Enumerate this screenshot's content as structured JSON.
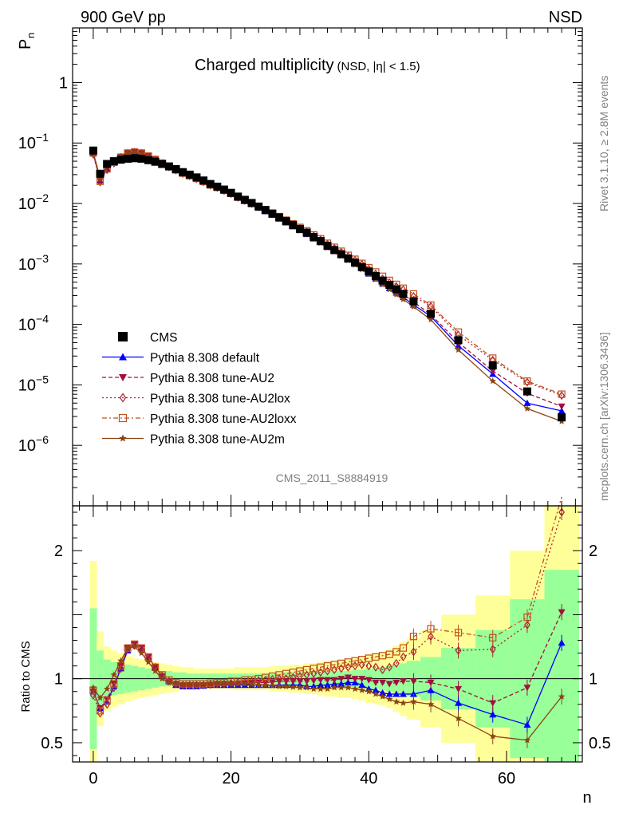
{
  "header": {
    "left": "900 GeV pp",
    "right": "NSD"
  },
  "side_text": {
    "top": "Rivet 3.1.10, ≥ 2.8M events",
    "bottom": "mcplots.cern.ch [arXiv:1306.3436]"
  },
  "analysis_id": "CMS_2011_S8884919",
  "chart_data": [
    {
      "type": "scatter",
      "title": "Charged multiplicity",
      "subtitle": "(NSD, |η| < 1.5)",
      "ylabel": "P",
      "ylabel_sub": "n",
      "yscale": "log",
      "ylim": [
        1e-07,
        8
      ],
      "xlim": [
        -3,
        71
      ],
      "yticks": [
        {
          "v": 1,
          "label": "1"
        },
        {
          "v": 0.1,
          "base": "10",
          "exp": "−1"
        },
        {
          "v": 0.01,
          "base": "10",
          "exp": "−2"
        },
        {
          "v": 0.001,
          "base": "10",
          "exp": "−3"
        },
        {
          "v": 0.0001,
          "base": "10",
          "exp": "−4"
        },
        {
          "v": 1e-05,
          "base": "10",
          "exp": "−5"
        },
        {
          "v": 1e-06,
          "base": "10",
          "exp": "−6"
        }
      ],
      "legend": [
        "CMS",
        "Pythia 8.308 default",
        "Pythia 8.308 tune-AU2",
        "Pythia 8.308 tune-AU2lox",
        "Pythia 8.308 tune-AU2loxx",
        "Pythia 8.308 tune-AU2m"
      ],
      "x": [
        0,
        1,
        2,
        3,
        4,
        5,
        6,
        7,
        8,
        9,
        10,
        11,
        12,
        13,
        14,
        15,
        16,
        17,
        18,
        19,
        20,
        21,
        22,
        23,
        24,
        25,
        26,
        27,
        28,
        29,
        30,
        31,
        32,
        33,
        34,
        35,
        36,
        37,
        38,
        39,
        40,
        41,
        42,
        43,
        44,
        45,
        46.5,
        49,
        53,
        58,
        63,
        68
      ],
      "series": [
        {
          "name": "CMS",
          "color": "#000000",
          "marker": "square",
          "values": [
            0.075,
            0.031,
            0.045,
            0.05,
            0.053,
            0.055,
            0.056,
            0.055,
            0.052,
            0.049,
            0.045,
            0.041,
            0.037,
            0.033,
            0.03,
            0.027,
            0.024,
            0.021,
            0.019,
            0.017,
            0.015,
            0.013,
            0.0115,
            0.0102,
            0.0089,
            0.0078,
            0.0068,
            0.0059,
            0.0051,
            0.0044,
            0.0038,
            0.0033,
            0.0028,
            0.0024,
            0.002,
            0.0017,
            0.00145,
            0.00123,
            0.00105,
            0.00089,
            0.00075,
            0.00063,
            0.00053,
            0.00045,
            0.00038,
            0.00032,
            0.00024,
            0.00015,
            5.5e-05,
            2.1e-05,
            7.8e-06,
            2.9e-06
          ]
        },
        {
          "name": "Pythia 8.308 default",
          "color": "#0000ff",
          "dash": "",
          "marker": "triangle-up",
          "ratio": [
            0.9,
            0.77,
            0.82,
            0.94,
            1.08,
            1.22,
            1.27,
            1.24,
            1.17,
            1.09,
            1.02,
            0.98,
            0.95,
            0.94,
            0.94,
            0.94,
            0.945,
            0.95,
            0.95,
            0.95,
            0.95,
            0.95,
            0.95,
            0.95,
            0.95,
            0.95,
            0.95,
            0.95,
            0.95,
            0.95,
            0.95,
            0.94,
            0.94,
            0.95,
            0.95,
            0.96,
            0.96,
            0.97,
            0.97,
            0.95,
            0.92,
            0.91,
            0.89,
            0.88,
            0.88,
            0.88,
            0.88,
            0.91,
            0.81,
            0.72,
            0.64,
            1.28
          ]
        },
        {
          "name": "Pythia 8.308 tune-AU2",
          "color": "#a01040",
          "dash": "5,3",
          "marker": "triangle-down",
          "ratio": [
            0.9,
            0.77,
            0.84,
            0.96,
            1.1,
            1.24,
            1.27,
            1.24,
            1.17,
            1.09,
            1.02,
            0.98,
            0.96,
            0.95,
            0.95,
            0.95,
            0.95,
            0.955,
            0.96,
            0.96,
            0.96,
            0.96,
            0.965,
            0.97,
            0.97,
            0.97,
            0.975,
            0.98,
            0.98,
            0.98,
            0.98,
            0.98,
            0.985,
            0.99,
            0.99,
            0.99,
            1.0,
            1.01,
            1.0,
            1.0,
            0.99,
            0.97,
            0.97,
            0.96,
            0.97,
            0.98,
            0.98,
            0.97,
            0.92,
            0.81,
            0.93,
            1.52
          ]
        },
        {
          "name": "Pythia 8.308 tune-AU2lox",
          "color": "#b02030",
          "dash": "2,3",
          "marker": "diamond",
          "ratio": [
            0.87,
            0.73,
            0.8,
            0.93,
            1.08,
            1.23,
            1.26,
            1.23,
            1.16,
            1.09,
            1.02,
            0.98,
            0.96,
            0.95,
            0.95,
            0.95,
            0.95,
            0.955,
            0.96,
            0.96,
            0.965,
            0.97,
            0.975,
            0.98,
            0.985,
            0.99,
            0.995,
            1.0,
            1.0,
            1.01,
            1.02,
            1.03,
            1.04,
            1.05,
            1.06,
            1.07,
            1.08,
            1.09,
            1.1,
            1.11,
            1.1,
            1.09,
            1.07,
            1.09,
            1.12,
            1.17,
            1.21,
            1.33,
            1.22,
            1.23,
            1.42,
            2.3
          ]
        },
        {
          "name": "Pythia 8.308 tune-AU2loxx",
          "color": "#c05020",
          "dash": "6,3,2,3",
          "marker": "square-open",
          "ratio": [
            0.91,
            0.75,
            0.83,
            0.96,
            1.1,
            1.24,
            1.27,
            1.24,
            1.17,
            1.09,
            1.03,
            0.99,
            0.97,
            0.96,
            0.96,
            0.96,
            0.96,
            0.965,
            0.97,
            0.97,
            0.98,
            0.98,
            0.99,
            0.99,
            1.0,
            1.01,
            1.02,
            1.03,
            1.04,
            1.05,
            1.06,
            1.07,
            1.08,
            1.09,
            1.1,
            1.11,
            1.12,
            1.13,
            1.14,
            1.15,
            1.16,
            1.17,
            1.18,
            1.19,
            1.21,
            1.24,
            1.33,
            1.39,
            1.36,
            1.32,
            1.48,
            2.42
          ]
        },
        {
          "name": "Pythia 8.308 tune-AU2m",
          "color": "#8b4513",
          "dash": "",
          "marker": "star",
          "ratio": [
            0.93,
            0.85,
            0.92,
            1.03,
            1.14,
            1.24,
            1.25,
            1.2,
            1.13,
            1.06,
            1.0,
            0.97,
            0.96,
            0.96,
            0.96,
            0.96,
            0.96,
            0.965,
            0.96,
            0.96,
            0.96,
            0.96,
            0.96,
            0.955,
            0.95,
            0.95,
            0.945,
            0.94,
            0.94,
            0.935,
            0.93,
            0.93,
            0.92,
            0.92,
            0.92,
            0.93,
            0.93,
            0.93,
            0.92,
            0.91,
            0.9,
            0.88,
            0.86,
            0.84,
            0.82,
            0.81,
            0.82,
            0.8,
            0.69,
            0.55,
            0.52,
            0.86
          ]
        }
      ]
    },
    {
      "type": "scatter",
      "ylabel": "Ratio to CMS",
      "xlabel": "n",
      "ylim": [
        0.35,
        2.35
      ],
      "xlim": [
        -3,
        71
      ],
      "yticks": [
        {
          "v": 0.5,
          "label": "0.5"
        },
        {
          "v": 1,
          "label": "1"
        },
        {
          "v": 2,
          "label": "2"
        }
      ],
      "xticks": [
        {
          "v": 0,
          "label": "0"
        },
        {
          "v": 20,
          "label": "20"
        },
        {
          "v": 40,
          "label": "40"
        },
        {
          "v": 60,
          "label": "60"
        }
      ],
      "band_edges": [
        -0.5,
        0.5,
        1.5,
        2.5,
        3.5,
        4.5,
        5.5,
        6.5,
        7.5,
        8.5,
        9.5,
        10.5,
        11.5,
        12.5,
        13.5,
        14.5,
        15.5,
        16.5,
        17.5,
        18.5,
        19.5,
        20.5,
        21.5,
        22.5,
        23.5,
        24.5,
        25.5,
        26.5,
        27.5,
        28.5,
        29.5,
        30.5,
        31.5,
        32.5,
        33.5,
        34.5,
        35.5,
        36.5,
        37.5,
        38.5,
        39.5,
        40.5,
        41.5,
        42.5,
        43.5,
        44.5,
        45.5,
        47.5,
        50.5,
        55.5,
        60.5,
        65.5,
        70.5
      ],
      "band_green_halfwidth": [
        0.55,
        0.22,
        0.15,
        0.13,
        0.12,
        0.11,
        0.1,
        0.09,
        0.08,
        0.07,
        0.06,
        0.06,
        0.05,
        0.05,
        0.04,
        0.04,
        0.04,
        0.04,
        0.04,
        0.04,
        0.04,
        0.04,
        0.04,
        0.04,
        0.04,
        0.04,
        0.04,
        0.04,
        0.05,
        0.05,
        0.05,
        0.05,
        0.05,
        0.05,
        0.06,
        0.06,
        0.06,
        0.06,
        0.07,
        0.07,
        0.08,
        0.08,
        0.09,
        0.1,
        0.11,
        0.12,
        0.14,
        0.17,
        0.24,
        0.38,
        0.62,
        0.85
      ],
      "band_yellow_halfwidth": [
        0.92,
        0.37,
        0.25,
        0.22,
        0.2,
        0.18,
        0.16,
        0.15,
        0.14,
        0.13,
        0.12,
        0.11,
        0.1,
        0.09,
        0.09,
        0.08,
        0.08,
        0.08,
        0.08,
        0.08,
        0.08,
        0.09,
        0.09,
        0.09,
        0.09,
        0.09,
        0.1,
        0.1,
        0.1,
        0.11,
        0.11,
        0.12,
        0.12,
        0.13,
        0.14,
        0.14,
        0.15,
        0.15,
        0.16,
        0.17,
        0.19,
        0.2,
        0.21,
        0.23,
        0.26,
        0.29,
        0.32,
        0.38,
        0.5,
        0.65,
        1.0,
        1.4
      ]
    }
  ]
}
